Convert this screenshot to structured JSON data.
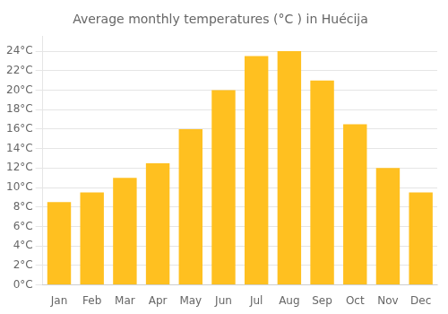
{
  "chart_data": {
    "type": "bar",
    "title": "Average monthly temperatures (°C ) in Huécija",
    "categories": [
      "Jan",
      "Feb",
      "Mar",
      "Apr",
      "May",
      "Jun",
      "Jul",
      "Aug",
      "Sep",
      "Oct",
      "Nov",
      "Dec"
    ],
    "values": [
      8.5,
      9.5,
      11.0,
      12.5,
      16.0,
      20.0,
      23.5,
      24.0,
      21.0,
      16.5,
      12.0,
      9.5
    ],
    "color": "#FFC020",
    "ylim": [
      0,
      25.5
    ],
    "yticks": [
      {
        "value": 0,
        "label": "0°C"
      },
      {
        "value": 2,
        "label": "2°C"
      },
      {
        "value": 4,
        "label": "4°C"
      },
      {
        "value": 6,
        "label": "6°C"
      },
      {
        "value": 8,
        "label": "8°C"
      },
      {
        "value": 10,
        "label": "10°C"
      },
      {
        "value": 12,
        "label": "12°C"
      },
      {
        "value": 14,
        "label": "14°C"
      },
      {
        "value": 16,
        "label": "16°C"
      },
      {
        "value": 18,
        "label": "18°C"
      },
      {
        "value": 20,
        "label": "20°C"
      },
      {
        "value": 22,
        "label": "22°C"
      },
      {
        "value": 24,
        "label": "24°C"
      }
    ],
    "grid": true
  }
}
